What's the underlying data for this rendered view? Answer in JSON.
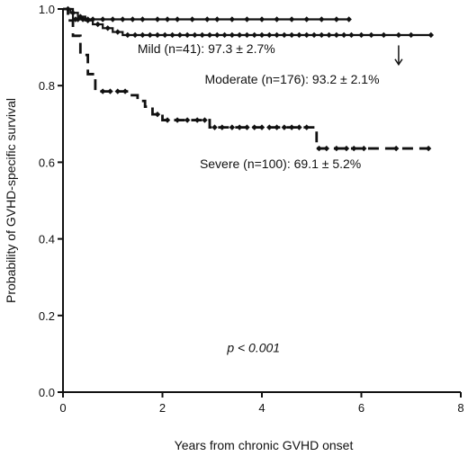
{
  "chart_data": {
    "type": "line",
    "step": true,
    "xlabel": "Years from chronic GVHD onset",
    "ylabel": "Probability of GVHD-specific survival",
    "xlim": [
      0,
      8
    ],
    "ylim": [
      0.0,
      1.0
    ],
    "x_ticks": [
      "0",
      "2",
      "4",
      "6",
      "8"
    ],
    "y_ticks": [
      "0.0",
      "0.2",
      "0.4",
      "0.6",
      "0.8",
      "1.0"
    ],
    "grid": false,
    "legend": "none",
    "series": [
      {
        "name": "Mild",
        "style": "solid",
        "steps": [
          [
            0,
            1.0
          ],
          [
            0.2,
            0.973
          ]
        ],
        "end_x": 5.75,
        "censor_x": [
          0.25,
          0.3,
          0.4,
          0.5,
          0.6,
          0.8,
          1.0,
          1.2,
          1.4,
          1.6,
          1.9,
          2.1,
          2.3,
          2.6,
          2.9,
          3.1,
          3.4,
          3.7,
          4.0,
          4.3,
          4.6,
          4.9,
          5.2,
          5.5,
          5.75
        ]
      },
      {
        "name": "Moderate",
        "style": "solid",
        "steps": [
          [
            0,
            1.0
          ],
          [
            0.15,
            0.99
          ],
          [
            0.3,
            0.98
          ],
          [
            0.45,
            0.97
          ],
          [
            0.6,
            0.96
          ],
          [
            0.8,
            0.95
          ],
          [
            1.0,
            0.94
          ],
          [
            1.2,
            0.932
          ]
        ],
        "end_x": 7.4,
        "censor_x": [
          0.1,
          0.2,
          0.35,
          0.5,
          0.7,
          0.9,
          1.1,
          1.3,
          1.45,
          1.6,
          1.75,
          1.9,
          2.05,
          2.2,
          2.35,
          2.5,
          2.65,
          2.8,
          2.95,
          3.1,
          3.25,
          3.4,
          3.55,
          3.7,
          3.85,
          4.0,
          4.15,
          4.3,
          4.45,
          4.6,
          4.75,
          4.9,
          5.05,
          5.2,
          5.35,
          5.5,
          5.65,
          5.8,
          6.0,
          6.2,
          6.45,
          6.75,
          7.0,
          7.4
        ]
      },
      {
        "name": "Severe",
        "style": "dashed",
        "steps": [
          [
            0,
            1.0
          ],
          [
            0.1,
            0.97
          ],
          [
            0.2,
            0.93
          ],
          [
            0.35,
            0.88
          ],
          [
            0.5,
            0.83
          ],
          [
            0.65,
            0.785
          ],
          [
            1.35,
            0.775
          ],
          [
            1.5,
            0.76
          ],
          [
            1.65,
            0.745
          ],
          [
            1.8,
            0.725
          ],
          [
            2.0,
            0.71
          ],
          [
            2.95,
            0.691
          ],
          [
            5.1,
            0.636
          ]
        ],
        "end_x": 7.35,
        "censor_x": [
          0.8,
          0.95,
          1.1,
          1.25,
          1.9,
          2.1,
          2.3,
          2.5,
          2.7,
          2.85,
          3.05,
          3.2,
          3.4,
          3.55,
          3.7,
          3.85,
          4.0,
          4.15,
          4.3,
          4.45,
          4.6,
          4.75,
          4.9,
          5.15,
          5.3,
          5.5,
          5.7,
          5.85,
          6.05,
          6.7,
          7.35
        ]
      }
    ],
    "annotations": [
      {
        "text": "Mild (n=41): 97.3 ± 2.7%",
        "x": 1.5,
        "y": 0.885
      },
      {
        "text": "Moderate (n=176): 93.2 ± 2.1%",
        "x": 2.85,
        "y": 0.805
      },
      {
        "text": "Severe (n=100): 69.1 ± 5.2%",
        "x": 2.75,
        "y": 0.585
      },
      {
        "text": "p < 0.001",
        "x": 3.3,
        "y": 0.105,
        "italic": true
      }
    ],
    "arrow": {
      "x": 6.75,
      "y_from": 0.905,
      "y_to": 0.855
    }
  }
}
